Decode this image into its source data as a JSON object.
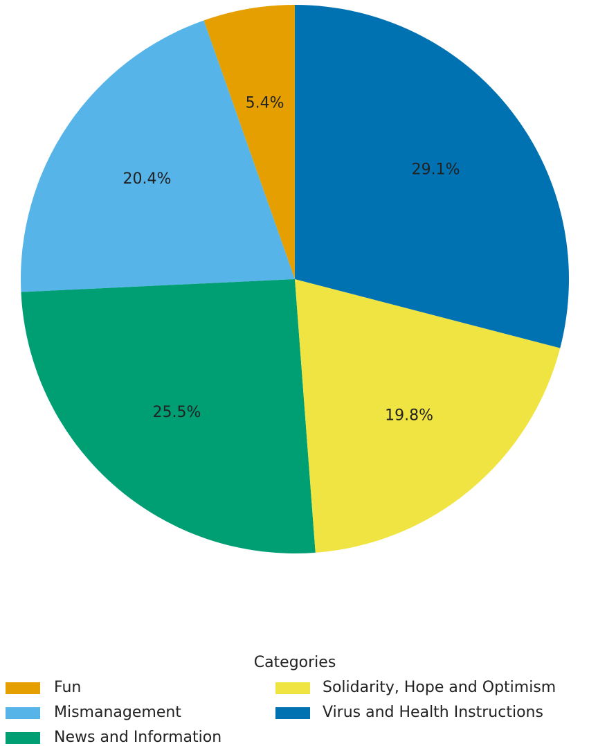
{
  "chart_data": {
    "type": "pie",
    "categories": [
      "Fun",
      "Mismanagement",
      "News and Information",
      "Solidarity, Hope and Optimism",
      "Virus and Health Instructions"
    ],
    "values": [
      5.4,
      20.4,
      25.5,
      19.8,
      29.1
    ],
    "value_labels": [
      "5.4%",
      "20.4%",
      "25.5%",
      "19.8%",
      "29.1%"
    ],
    "colors": [
      "#E69F00",
      "#56B4E9",
      "#009E73",
      "#F0E442",
      "#0072B2"
    ],
    "legend_title": "Categories"
  }
}
